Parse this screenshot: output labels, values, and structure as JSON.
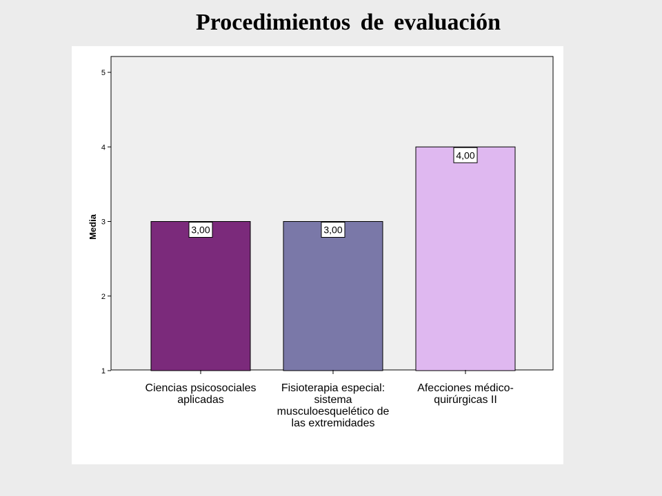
{
  "slide": {
    "title": "Procedimientos de evaluación"
  },
  "chart_data": {
    "type": "bar",
    "title": "Procedimientos de evaluación",
    "ylabel": "Media",
    "xlabel": "",
    "ylim": [
      1,
      5
    ],
    "yticks": [
      "1",
      "2",
      "3",
      "4",
      "5"
    ],
    "grid": false,
    "categories": [
      [
        "Ciencias psicosociales",
        "aplicadas"
      ],
      [
        "Fisioterapia especial:",
        "sistema",
        "musculoesquelético de",
        "las extremidades"
      ],
      [
        "Afecciones médico-",
        "quirúrgicas II"
      ]
    ],
    "values": [
      3.0,
      3.0,
      4.0
    ],
    "data_labels": [
      "3,00",
      "3,00",
      "4,00"
    ],
    "colors": [
      "#7b2a7b",
      "#7a78a8",
      "#dfb8f0"
    ],
    "plot_background": "#efefef"
  }
}
